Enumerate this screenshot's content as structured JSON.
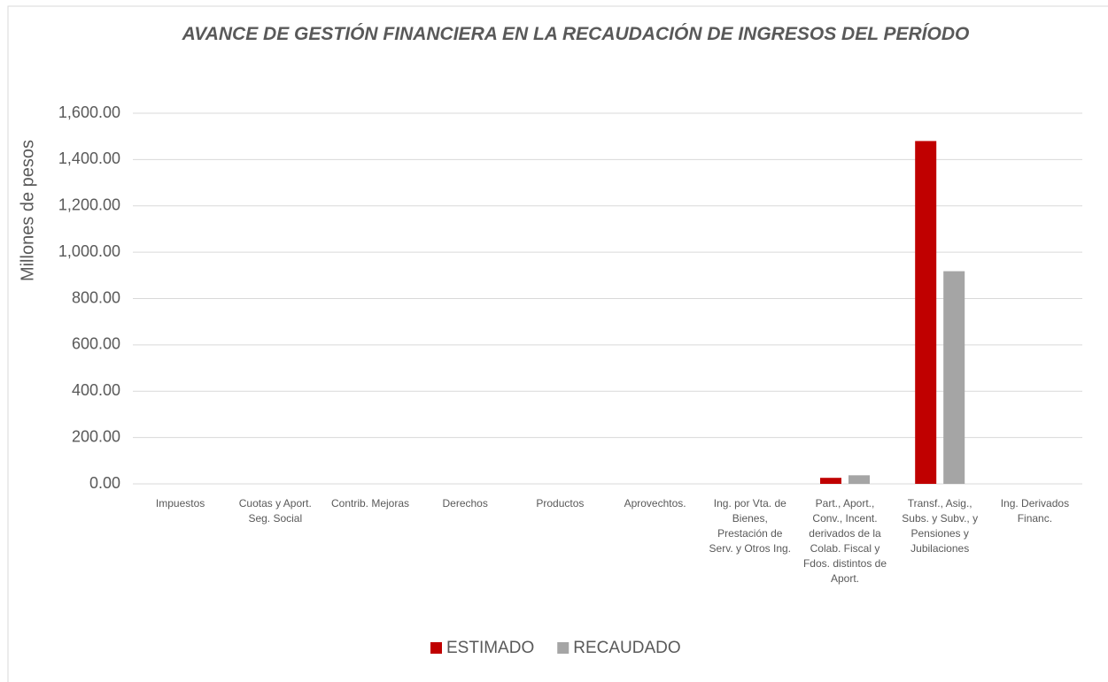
{
  "chart_data": {
    "type": "bar",
    "title": "AVANCE DE GESTIÓN FINANCIERA EN LA RECAUDACIÓN DE INGRESOS DEL PERÍODO",
    "y_label": "Millones de pesos",
    "categories": [
      "Impuestos",
      "Cuotas y Aport. Seg. Social",
      "Contrib. Mejoras",
      "Derechos",
      "Productos",
      "Aprovechtos.",
      "Ing. por Vta. de Bienes, Prestación de Serv. y Otros Ing.",
      "Part., Aport., Conv., Incent. derivados de la Colab. Fiscal y Fdos. distintos de Aport.",
      "Transf., Asig., Subs. y Subv., y Pensiones y Jubilaciones",
      "Ing. Derivados Financ."
    ],
    "series": [
      {
        "name": "ESTIMADO",
        "color": "#c00000",
        "values": [
          0,
          0,
          0,
          0,
          0,
          0,
          0,
          26,
          1480,
          0
        ]
      },
      {
        "name": "RECAUDADO",
        "color": "#a5a5a5",
        "values": [
          0,
          0,
          0,
          0,
          0,
          0,
          0,
          37,
          918,
          0
        ]
      }
    ],
    "ylim": [
      0,
      1600
    ],
    "yticks": [
      {
        "value": 0,
        "label": "0.00"
      },
      {
        "value": 200,
        "label": "200.00"
      },
      {
        "value": 400,
        "label": "400.00"
      },
      {
        "value": 600,
        "label": "600.00"
      },
      {
        "value": 800,
        "label": "800.00"
      },
      {
        "value": 1000,
        "label": "1,000.00"
      },
      {
        "value": 1200,
        "label": "1,200.00"
      },
      {
        "value": 1400,
        "label": "1,400.00"
      },
      {
        "value": 1600,
        "label": "1,600.00"
      }
    ],
    "grid": true,
    "legend": "bottom"
  }
}
